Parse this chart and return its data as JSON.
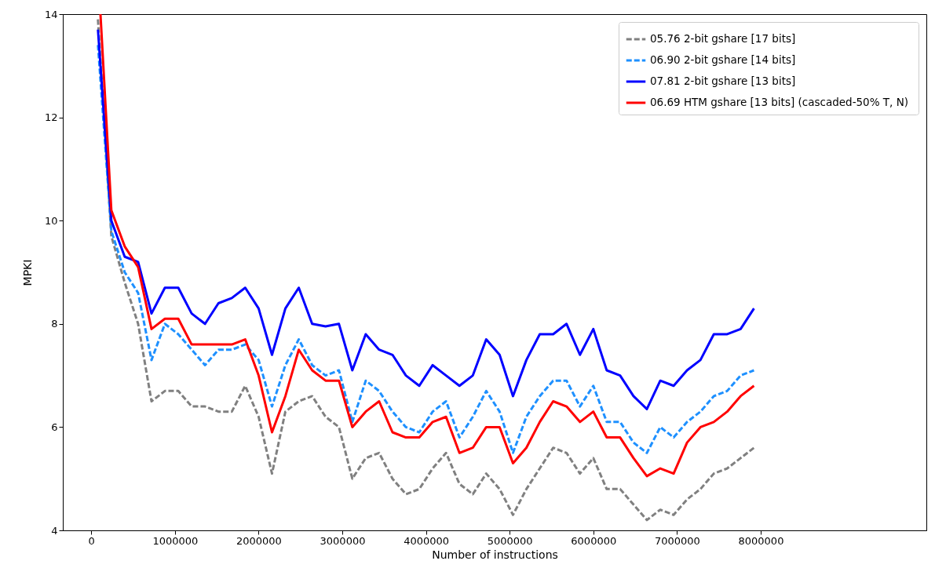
{
  "chart_data": {
    "type": "line",
    "xlabel": "Number of instructions",
    "ylabel": "MPKI",
    "x": [
      80000,
      240000,
      400000,
      560000,
      720000,
      880000,
      1040000,
      1200000,
      1360000,
      1520000,
      1680000,
      1840000,
      2000000,
      2160000,
      2320000,
      2480000,
      2640000,
      2800000,
      2960000,
      3120000,
      3280000,
      3440000,
      3600000,
      3760000,
      3920000,
      4080000,
      4240000,
      4400000,
      4560000,
      4720000,
      4880000,
      5040000,
      5200000,
      5360000,
      5520000,
      5680000,
      5840000,
      6000000,
      6160000,
      6320000,
      6480000,
      6640000,
      6800000,
      6960000,
      7120000,
      7280000,
      7440000,
      7600000,
      7760000,
      7920000
    ],
    "xlim": [
      -340000,
      9980000
    ],
    "xticks": [
      0,
      1000000,
      2000000,
      3000000,
      4000000,
      5000000,
      6000000,
      7000000,
      8000000
    ],
    "ylim": [
      4,
      14
    ],
    "yticks": [
      4,
      6,
      8,
      10,
      12,
      14
    ],
    "grid": false,
    "legend": "top right",
    "marker": "none",
    "series": [
      {
        "name": "05.76  2-bit gshare [17 bits]",
        "color": "#808080",
        "line_style": "dashed",
        "values": [
          13.9,
          9.7,
          8.8,
          8.0,
          6.5,
          6.7,
          6.7,
          6.4,
          6.4,
          6.3,
          6.3,
          6.8,
          6.2,
          5.1,
          6.3,
          6.5,
          6.6,
          6.2,
          6.0,
          5.0,
          5.4,
          5.5,
          5.0,
          4.7,
          4.8,
          5.2,
          5.5,
          4.9,
          4.7,
          5.1,
          4.8,
          4.3,
          4.8,
          5.2,
          5.6,
          5.5,
          5.1,
          5.4,
          4.8,
          4.8,
          4.5,
          4.2,
          4.4,
          4.3,
          4.6,
          4.8,
          5.1,
          5.2,
          5.4,
          5.6
        ]
      },
      {
        "name": "06.90  2-bit gshare [14 bits]",
        "color": "#1e90ff",
        "line_style": "dashed",
        "values": [
          13.4,
          9.8,
          9.0,
          8.6,
          7.3,
          8.0,
          7.8,
          7.5,
          7.2,
          7.5,
          7.5,
          7.6,
          7.3,
          6.4,
          7.2,
          7.7,
          7.2,
          7.0,
          7.1,
          6.1,
          6.9,
          6.7,
          6.3,
          6.0,
          5.9,
          6.3,
          6.5,
          5.8,
          6.2,
          6.7,
          6.3,
          5.5,
          6.2,
          6.6,
          6.9,
          6.9,
          6.4,
          6.8,
          6.1,
          6.1,
          5.7,
          5.5,
          6.0,
          5.8,
          6.1,
          6.3,
          6.6,
          6.7,
          7.0,
          7.1
        ]
      },
      {
        "name": "07.81  2-bit gshare [13 bits]",
        "color": "#0000ff",
        "line_style": "solid",
        "values": [
          13.7,
          10.0,
          9.3,
          9.2,
          8.2,
          8.7,
          8.7,
          8.2,
          8.0,
          8.4,
          8.5,
          8.7,
          8.3,
          7.4,
          8.3,
          8.7,
          8.0,
          7.95,
          8.0,
          7.1,
          7.8,
          7.5,
          7.4,
          7.0,
          6.8,
          7.2,
          7.0,
          6.8,
          7.0,
          7.7,
          7.4,
          6.6,
          7.3,
          7.8,
          7.8,
          8.0,
          7.4,
          7.9,
          7.1,
          7.0,
          6.6,
          6.35,
          6.9,
          6.8,
          7.1,
          7.3,
          7.8,
          7.8,
          7.9,
          8.3
        ]
      },
      {
        "name": "06.69  HTM gshare [13 bits] (cascaded-50% T, N)",
        "color": "#ff0000",
        "line_style": "solid",
        "x": [
          110000,
          240000,
          400000,
          560000,
          720000,
          880000,
          1040000,
          1200000,
          1360000,
          1520000,
          1680000,
          1840000,
          2000000,
          2160000,
          2320000,
          2480000,
          2640000,
          2800000,
          2960000,
          3120000,
          3280000,
          3440000,
          3600000,
          3760000,
          3920000,
          4080000,
          4240000,
          4400000,
          4560000,
          4720000,
          4880000,
          5040000,
          5200000,
          5360000,
          5520000,
          5680000,
          5840000,
          6000000,
          6160000,
          6320000,
          6480000,
          6640000,
          6800000,
          6960000,
          7120000,
          7280000,
          7440000,
          7600000,
          7760000,
          7920000
        ],
        "values": [
          14.0,
          10.2,
          9.5,
          9.1,
          7.9,
          8.1,
          8.1,
          7.6,
          7.6,
          7.6,
          7.6,
          7.7,
          7.0,
          5.9,
          6.6,
          7.5,
          7.1,
          6.9,
          6.9,
          6.0,
          6.3,
          6.5,
          5.9,
          5.8,
          5.8,
          6.1,
          6.2,
          5.5,
          5.6,
          6.0,
          6.0,
          5.3,
          5.6,
          6.1,
          6.5,
          6.4,
          6.1,
          6.3,
          5.8,
          5.8,
          5.4,
          5.05,
          5.2,
          5.1,
          5.7,
          6.0,
          6.1,
          6.3,
          6.6,
          6.8
        ]
      }
    ]
  }
}
